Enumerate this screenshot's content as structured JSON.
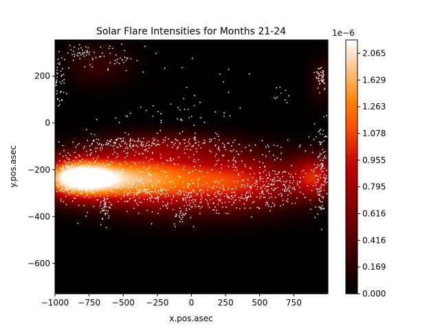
{
  "chart_data": {
    "type": "heatmap",
    "title": "Solar Flare Intensities for Months 21-24",
    "xlabel": "x.pos.asec",
    "ylabel": "y.pos.asec",
    "xlim": [
      -1000,
      1000
    ],
    "ylim": [
      -730,
      355
    ],
    "x_ticks": [
      -1000,
      -750,
      -500,
      -250,
      0,
      250,
      500,
      750
    ],
    "x_tick_labels": [
      "−1000",
      "−750",
      "−500",
      "−250",
      "0",
      "250",
      "500",
      "750"
    ],
    "y_ticks": [
      -600,
      -400,
      -200,
      0,
      200
    ],
    "y_tick_labels": [
      "−600",
      "−400",
      "−200",
      "0",
      "200"
    ],
    "colormap": "gist_heat",
    "colorbar": {
      "multiplier_label": "1e−6",
      "vmin": 0,
      "vmax": 2.3e-06,
      "tick_labels": [
        "0.000",
        "0.169",
        "0.416",
        "0.616",
        "0.795",
        "0.955",
        "1.078",
        "1.263",
        "1.629",
        "2.065"
      ]
    },
    "density_components": [
      {
        "x": -840,
        "y": -235,
        "sx": 190,
        "sy": 55,
        "w": 1.0
      },
      {
        "x": -500,
        "y": -240,
        "sx": 260,
        "sy": 70,
        "w": 0.55
      },
      {
        "x": -100,
        "y": -245,
        "sx": 300,
        "sy": 85,
        "w": 0.45
      },
      {
        "x": 400,
        "y": -255,
        "sx": 280,
        "sy": 75,
        "w": 0.42
      },
      {
        "x": 900,
        "y": -230,
        "sx": 110,
        "sy": 60,
        "w": 0.45
      },
      {
        "x": -200,
        "y": -95,
        "sx": 330,
        "sy": 35,
        "w": 0.18
      },
      {
        "x": -680,
        "y": 250,
        "sx": 160,
        "sy": 60,
        "w": 0.1
      },
      {
        "x": 950,
        "y": 180,
        "sx": 60,
        "sy": 60,
        "w": 0.1
      }
    ],
    "flare_point_clusters": [
      {
        "x": -900,
        "y": -230,
        "sx": 55,
        "sy": 45,
        "n": 230
      },
      {
        "x": -720,
        "y": -225,
        "sx": 110,
        "sy": 60,
        "n": 160
      },
      {
        "x": -500,
        "y": -220,
        "sx": 120,
        "sy": 70,
        "n": 80
      },
      {
        "x": -200,
        "y": -230,
        "sx": 160,
        "sy": 50,
        "n": 80
      },
      {
        "x": -350,
        "y": -300,
        "sx": 200,
        "sy": 30,
        "n": 150
      },
      {
        "x": 0,
        "y": -330,
        "sx": 170,
        "sy": 30,
        "n": 90
      },
      {
        "x": 350,
        "y": -310,
        "sx": 180,
        "sy": 35,
        "n": 140
      },
      {
        "x": 650,
        "y": -265,
        "sx": 160,
        "sy": 35,
        "n": 150
      },
      {
        "x": 300,
        "y": -200,
        "sx": 260,
        "sy": 40,
        "n": 70
      },
      {
        "x": -350,
        "y": -90,
        "sx": 330,
        "sy": 18,
        "n": 190
      },
      {
        "x": 300,
        "y": -120,
        "sx": 260,
        "sy": 30,
        "n": 60
      },
      {
        "x": 950,
        "y": -200,
        "sx": 30,
        "sy": 110,
        "n": 130
      },
      {
        "x": -980,
        "y": 150,
        "sx": 25,
        "sy": 60,
        "n": 50
      },
      {
        "x": -820,
        "y": 300,
        "sx": 80,
        "sy": 15,
        "n": 35
      },
      {
        "x": -600,
        "y": 280,
        "sx": 90,
        "sy": 30,
        "n": 40
      },
      {
        "x": -150,
        "y": 40,
        "sx": 220,
        "sy": 30,
        "n": 30
      },
      {
        "x": 950,
        "y": 200,
        "sx": 20,
        "sy": 30,
        "n": 45
      },
      {
        "x": 650,
        "y": 120,
        "sx": 60,
        "sy": 30,
        "n": 8
      },
      {
        "x": -630,
        "y": -370,
        "sx": 20,
        "sy": 30,
        "n": 35
      },
      {
        "x": -70,
        "y": -400,
        "sx": 30,
        "sy": 20,
        "n": 25
      },
      {
        "x": 0,
        "y": 200,
        "sx": 400,
        "sy": 120,
        "n": 25
      }
    ]
  }
}
